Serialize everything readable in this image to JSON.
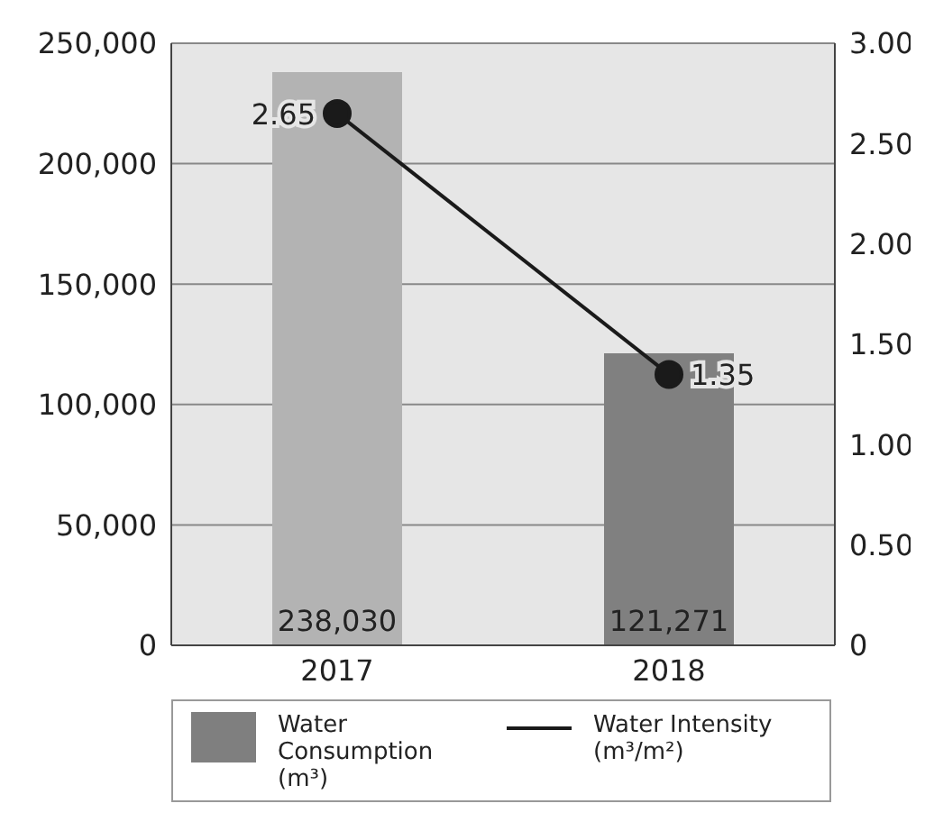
{
  "chart_data": {
    "type": "bar",
    "categories": [
      "2017",
      "2018"
    ],
    "series": [
      {
        "name": "Water Consumption (m³)",
        "color": "#7f7f7f",
        "colors": [
          "#b3b3b3",
          "#808080"
        ],
        "values": [
          238030,
          121271
        ],
        "value_labels": [
          "238,030",
          "121,271"
        ]
      },
      {
        "name": "Water Intensity (m³/m²)",
        "type": "line",
        "axis": "y2",
        "color": "#1a1a1a",
        "values": [
          2.65,
          1.35
        ],
        "value_labels": [
          "2.65",
          "1.35"
        ]
      }
    ],
    "ylim": [
      0,
      250000
    ],
    "yticks": [
      {
        "value": 0,
        "label": "0"
      },
      {
        "value": 50000,
        "label": "50,000"
      },
      {
        "value": 100000,
        "label": "100,000"
      },
      {
        "value": 150000,
        "label": "150,000"
      },
      {
        "value": 200000,
        "label": "200,000"
      },
      {
        "value": 250000,
        "label": "250,000"
      }
    ],
    "y2lim": [
      0,
      3
    ],
    "y2ticks": [
      {
        "value": 0,
        "label": "0"
      },
      {
        "value": 0.5,
        "label": "0.50"
      },
      {
        "value": 1,
        "label": "1.00"
      },
      {
        "value": 1.5,
        "label": "1.50"
      },
      {
        "value": 2,
        "label": "2.00"
      },
      {
        "value": 2.5,
        "label": "2.50"
      },
      {
        "value": 3,
        "label": "3.00"
      }
    ],
    "grid": "y",
    "legend": "bottom",
    "marker": "circle",
    "line_style": "solid"
  }
}
